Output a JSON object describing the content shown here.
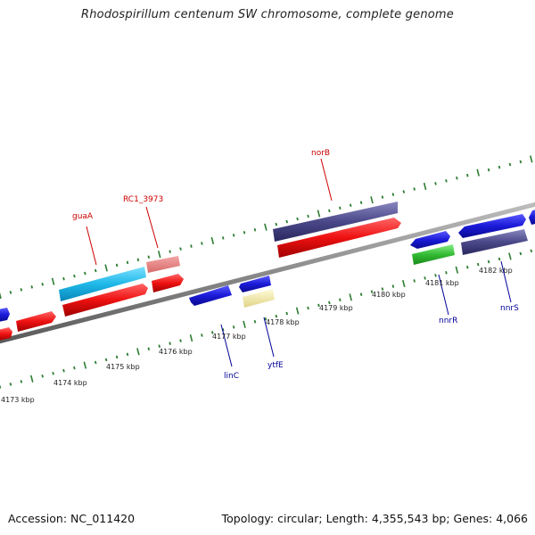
{
  "title": "Rhodospirillum centenum SW chromosome, complete genome",
  "footer": {
    "accession": "Accession: NC_011420",
    "summary": "Topology: circular; Length: 4,355,543 bp; Genes: 4,066"
  },
  "colors": {
    "backbone": "#888888",
    "ticks": "#2e7d32",
    "cds_red": "#ee1111",
    "cds_pink": "#e87a7a",
    "cds_cyan": "#1eb8e8",
    "cds_blue": "#1a1ad8",
    "cds_navy": "#4a4888",
    "cds_green": "#33bb33",
    "cds_yellow": "#f0e6a0",
    "label_top": "#cc0000",
    "label_bottom": "#000099"
  },
  "kbp_labels": [
    "4173 kbp",
    "4174 kbp",
    "4175 kbp",
    "4176 kbp",
    "4177 kbp",
    "4178 kbp",
    "4179 kbp",
    "4180 kbp",
    "4181 kbp",
    "4182 kbp"
  ],
  "gene_labels": {
    "guaA": "guaA",
    "RC1_3973": "RC1_3973",
    "norB": "norB",
    "linC": "linC",
    "ytfE": "ytfE",
    "nnrR": "nnrR",
    "nnrS": "nnrS"
  }
}
